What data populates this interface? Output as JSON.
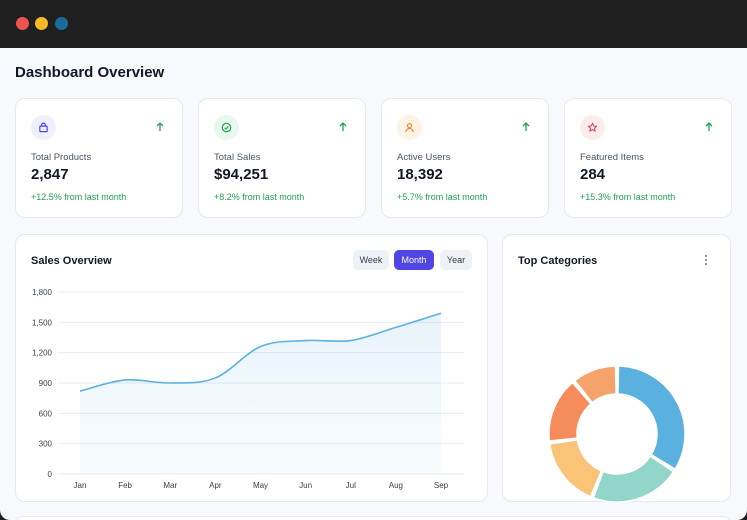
{
  "window": {
    "controls": [
      {
        "name": "close",
        "color": "#ef5350"
      },
      {
        "name": "minimize",
        "color": "#f7b928"
      },
      {
        "name": "maximize",
        "color": "#1a6a9a"
      }
    ]
  },
  "page": {
    "title": "Dashboard Overview"
  },
  "stats": [
    {
      "label": "Total Products",
      "value": "2,847",
      "change": "+12.5% from last month",
      "icon": "shopping-bag-icon",
      "color": "#4f46e5",
      "bg": "#eef0ff"
    },
    {
      "label": "Total Sales",
      "value": "$94,251",
      "change": "+8.2% from last month",
      "icon": "check-circle-icon",
      "color": "#22a055",
      "bg": "#e9f8ef"
    },
    {
      "label": "Active Users",
      "value": "18,392",
      "change": "+5.7% from last month",
      "icon": "user-icon",
      "color": "#f08c2c",
      "bg": "#fff3e6"
    },
    {
      "label": "Featured Items",
      "value": "284",
      "change": "+15.3% from last month",
      "icon": "star-icon",
      "color": "#e03a4a",
      "bg": "#fdecee"
    }
  ],
  "sales_panel": {
    "title": "Sales Overview",
    "range_buttons": [
      "Week",
      "Month",
      "Year"
    ],
    "active_range": "Month"
  },
  "categories_panel": {
    "title": "Top Categories",
    "menu_icon": "kebab-menu-icon"
  },
  "chart_data": [
    {
      "type": "area",
      "categories": [
        "Jan",
        "Feb",
        "Mar",
        "Apr",
        "May",
        "Jun",
        "Jul",
        "Aug",
        "Sep"
      ],
      "values": [
        820,
        930,
        900,
        950,
        1260,
        1320,
        1320,
        1450,
        1590
      ],
      "ylim": [
        0,
        1800
      ],
      "yticks": [
        "0",
        "300",
        "600",
        "900",
        "1,200",
        "1,500",
        "1,800"
      ],
      "grid": true,
      "color": "#5ab1e0"
    },
    {
      "type": "pie",
      "style": "donut",
      "values": [
        34,
        22,
        17,
        16,
        11
      ],
      "colors": [
        "#5ab1e0",
        "#91d6c8",
        "#f9c378",
        "#f68b5b",
        "#f6a36b"
      ]
    }
  ]
}
